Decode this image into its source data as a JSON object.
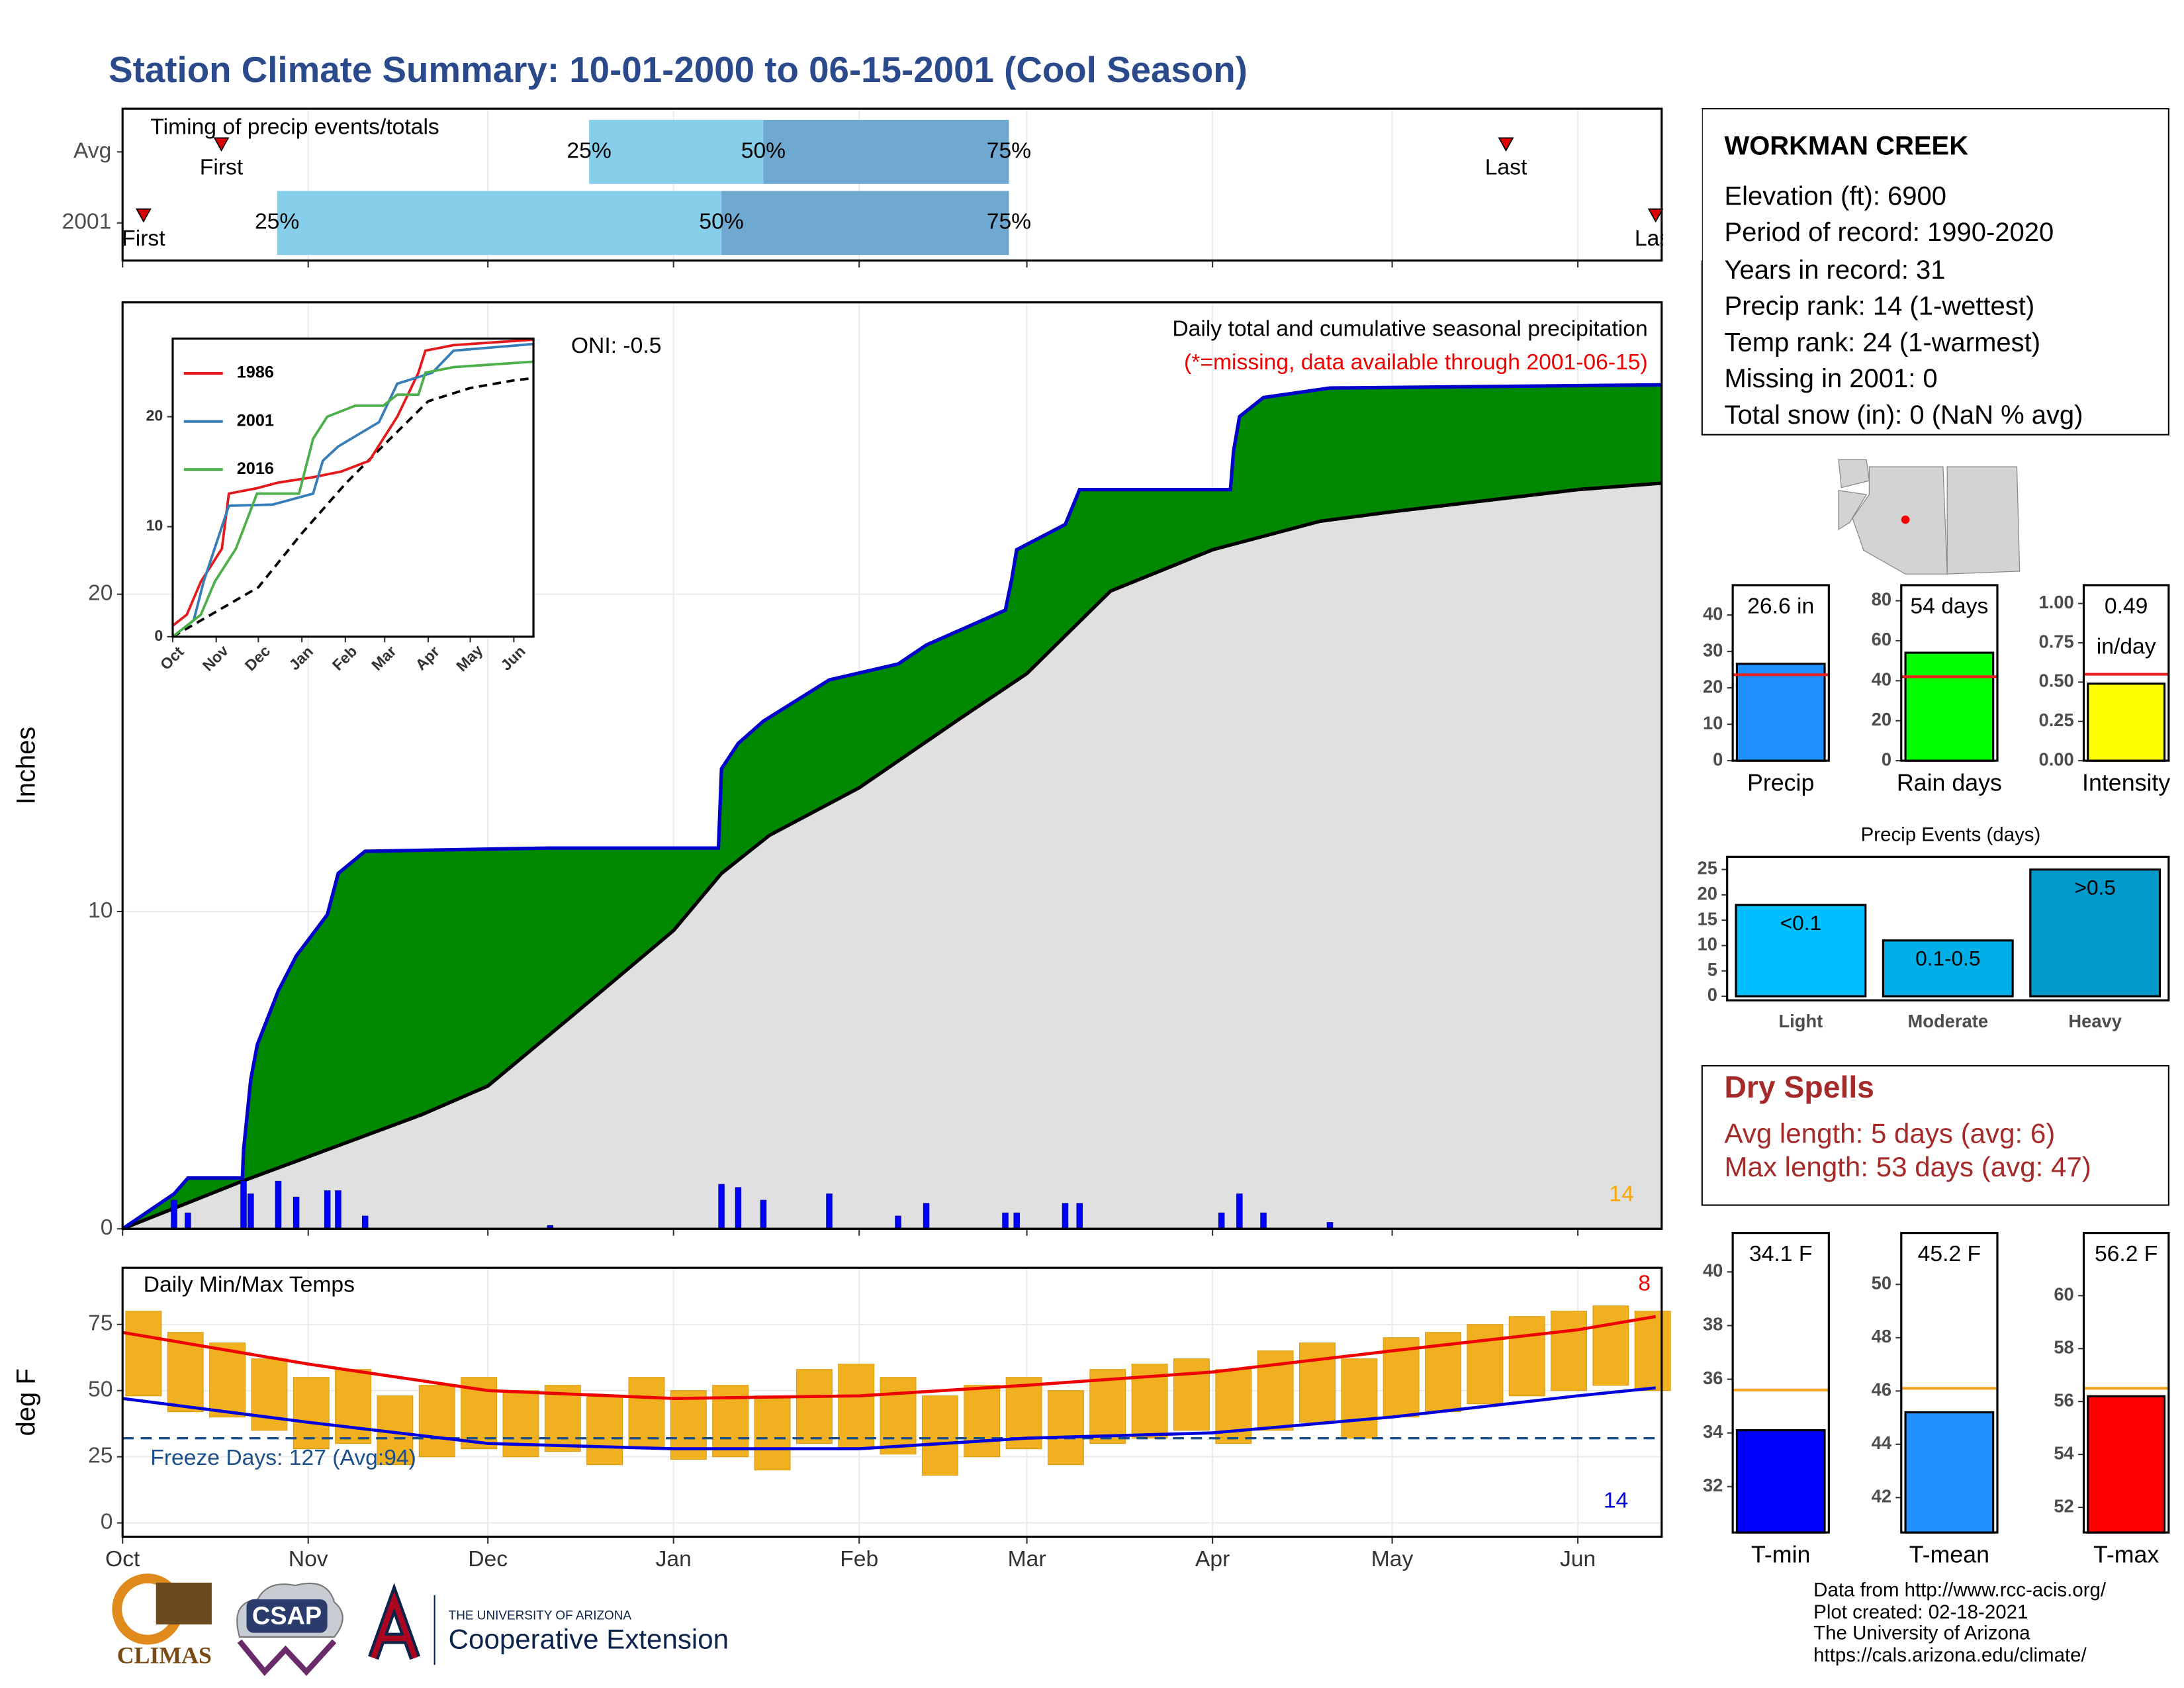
{
  "header": {
    "title": "Station Climate Summary: 10-01-2000 to 06-15-2001 (Cool Season)"
  },
  "station": {
    "name": "WORKMAN CREEK",
    "lines": [
      "Elevation (ft): 6900",
      "Period of record: 1990-2020",
      "Years in record: 31",
      "Precip rank: 14 (1-wettest)",
      "Temp rank: 24 (1-warmest)",
      "Missing in 2001: 0",
      "Total snow (in): 0 (NaN % avg)"
    ]
  },
  "dry_spells": {
    "title": "Dry Spells",
    "lines": [
      "Avg length: 5 days (avg: 6)",
      "Max length: 53 days (avg: 47)"
    ]
  },
  "footer": {
    "lines": [
      "Data from http://www.rcc-acis.org/",
      "Plot created: 02-18-2021",
      "The University of Arizona",
      "https://cals.arizona.edu/climate/"
    ]
  },
  "logos": {
    "climas": "CLIMAS",
    "csap": "CSAP",
    "university": "THE UNIVERSITY OF ARIZONA",
    "extension": "Cooperative Extension"
  },
  "chart_data": [
    {
      "type": "timing",
      "title": "Timing of precip events/totals",
      "categories": [
        "Avg",
        "2001"
      ],
      "first": [
        16.5,
        3.5
      ],
      "q25": [
        77.9,
        25.8
      ],
      "q50": [
        107,
        100
      ],
      "q75": [
        148,
        148
      ],
      "last": [
        231,
        256
      ],
      "labels": {
        "first": "First",
        "last": "Last",
        "q25": "25%",
        "q50": "50%",
        "q75": "75%"
      },
      "colors": {
        "early": "#87ceeb",
        "late": "#6fa8d0",
        "marker": "#dd0000"
      },
      "xlim": [
        0,
        257
      ]
    },
    {
      "type": "cumulative",
      "title": "Daily total and cumulative seasonal precipitation",
      "subtitle": "(*=missing, data available through 2001-06-15)",
      "annotation": "ONI: -0.5",
      "note": "14",
      "y_label": "Inches",
      "xlim": [
        0,
        257
      ],
      "ylim": [
        0,
        29.2
      ],
      "yticks": [
        0,
        10,
        20
      ],
      "grid": true,
      "observed": {
        "color": "#0000cc",
        "fill": "#008800",
        "x": [
          0,
          8.6,
          10.9,
          20,
          20.2,
          21.4,
          22.5,
          26,
          29,
          34.2,
          36,
          40.5,
          71.4,
          99.5,
          100,
          102.8,
          107,
          118,
          129.5,
          134.2,
          147.4,
          148.5,
          149.3,
          157.4,
          159.8,
          185,
          185.5,
          186.5,
          190.5,
          201.6,
          257
        ],
        "values": [
          0,
          1.1,
          1.6,
          1.6,
          2.5,
          4.7,
          5.8,
          7.5,
          8.6,
          9.9,
          11.2,
          11.9,
          12.0,
          12.0,
          14.5,
          15.3,
          16.0,
          17.3,
          17.8,
          18.4,
          19.5,
          20.5,
          21.4,
          22.2,
          23.3,
          23.3,
          24.5,
          25.6,
          26.2,
          26.5,
          26.6
        ]
      },
      "average": {
        "color": "#000000",
        "fill": "#e0e0e0",
        "x": [
          0,
          20,
          30,
          50,
          61,
          75,
          92,
          100,
          108,
          123,
          140,
          151,
          165,
          182,
          200,
          212,
          243,
          257
        ],
        "values": [
          0,
          1.5,
          2.2,
          3.6,
          4.5,
          6.7,
          9.4,
          11.2,
          12.4,
          13.9,
          16.1,
          17.5,
          20.1,
          21.4,
          22.3,
          22.6,
          23.3,
          23.5
        ]
      },
      "daily": {
        "color": "#0000ff",
        "x": [
          8.6,
          10.9,
          20.2,
          21.4,
          26,
          29,
          34.2,
          36,
          40.5,
          71.4,
          100,
          102.8,
          107,
          118,
          129.5,
          134.2,
          147.4,
          149.3,
          157.4,
          159.8,
          183.5,
          186.5,
          190.5,
          201.6
        ],
        "values": [
          0.9,
          0.5,
          1.5,
          1.1,
          1.5,
          1.0,
          1.2,
          1.2,
          0.4,
          0.1,
          1.4,
          1.3,
          0.9,
          1.1,
          0.4,
          0.8,
          0.5,
          0.5,
          0.8,
          0.8,
          0.5,
          1.1,
          0.5,
          0.2
        ]
      }
    },
    {
      "type": "line",
      "xlim": [
        0,
        257
      ],
      "ylim": [
        0,
        27.1
      ],
      "yticks": [
        0,
        10,
        20
      ],
      "xticks": [
        {
          "value": 0,
          "label": "Oct"
        },
        {
          "value": 31,
          "label": "Nov"
        },
        {
          "value": 61,
          "label": "Dec"
        },
        {
          "value": 92,
          "label": "Jan"
        },
        {
          "value": 123,
          "label": "Feb"
        },
        {
          "value": 151,
          "label": "Mar"
        },
        {
          "value": 182,
          "label": "Apr"
        },
        {
          "value": 212,
          "label": "May"
        },
        {
          "value": 243,
          "label": "Jun"
        }
      ],
      "series": [
        {
          "name": "1986",
          "color": "#e41a1c",
          "x": [
            0,
            10,
            20,
            35,
            40,
            60,
            75,
            100,
            120,
            140,
            160,
            175,
            180,
            200,
            257
          ],
          "values": [
            1,
            2,
            5,
            8,
            13,
            13.5,
            14,
            14.5,
            15,
            16,
            20,
            24,
            26,
            26.5,
            27
          ]
        },
        {
          "name": "2001",
          "color": "#377eb8",
          "x": [
            0,
            15,
            22,
            40,
            71,
            100,
            107,
            118,
            147,
            160,
            185,
            200,
            257
          ],
          "values": [
            0,
            1.5,
            5,
            11.9,
            12,
            13,
            16,
            17.3,
            19.5,
            23,
            24,
            26,
            26.6
          ]
        },
        {
          "name": "2016",
          "color": "#4daf4a",
          "x": [
            0,
            20,
            30,
            45,
            60,
            90,
            100,
            110,
            130,
            150,
            160,
            175,
            180,
            200,
            257
          ],
          "values": [
            0,
            2,
            5,
            8,
            13,
            13,
            18,
            20,
            21,
            21,
            22,
            22,
            24,
            24.5,
            25
          ]
        }
      ],
      "average": {
        "color": "#000000",
        "x": [
          0,
          30,
          61,
          92,
          123,
          151,
          182,
          212,
          243,
          257
        ],
        "values": [
          0,
          2.2,
          4.5,
          9.4,
          13.9,
          17.5,
          21.4,
          22.6,
          23.3,
          23.5
        ]
      }
    },
    {
      "type": "temps",
      "title": "Daily Min/Max Temps",
      "annotation": "Freeze Days: 127 (Avg:94)",
      "note_high": "8",
      "note_low": "14",
      "y_label": "deg F",
      "xlim": [
        0,
        257
      ],
      "ylim": [
        -5.2,
        96.4
      ],
      "yticks": [
        0,
        25,
        50,
        75
      ],
      "freeze": 32,
      "grid": true,
      "xticks": [
        {
          "value": 0,
          "label": "Oct"
        },
        {
          "value": 31,
          "label": "Nov"
        },
        {
          "value": 61,
          "label": "Dec"
        },
        {
          "value": 92,
          "label": "Jan"
        },
        {
          "value": 123,
          "label": "Feb"
        },
        {
          "value": 151,
          "label": "Mar"
        },
        {
          "value": 182,
          "label": "Apr"
        },
        {
          "value": 212,
          "label": "May"
        },
        {
          "value": 243,
          "label": "Jun"
        }
      ],
      "x": [
        3.5,
        10.5,
        17.5,
        24.5,
        31.5,
        38.5,
        45.5,
        52.5,
        59.5,
        66.5,
        73.5,
        80.5,
        87.5,
        94.5,
        101.5,
        108.5,
        115.5,
        122.5,
        129.5,
        136.5,
        143.5,
        150.5,
        157.5,
        164.5,
        171.5,
        178.5,
        185.5,
        192.5,
        199.5,
        206.5,
        213.5,
        220.5,
        227.5,
        234.5,
        241.5,
        248.5,
        255.5
      ],
      "max": [
        80,
        72,
        68,
        62,
        55,
        58,
        48,
        52,
        55,
        50,
        52,
        48,
        55,
        50,
        52,
        48,
        58,
        60,
        55,
        48,
        52,
        55,
        50,
        58,
        60,
        62,
        58,
        65,
        68,
        62,
        70,
        72,
        75,
        78,
        80,
        82,
        80
      ],
      "min": [
        48,
        42,
        40,
        35,
        28,
        30,
        22,
        25,
        28,
        25,
        27,
        22,
        28,
        24,
        25,
        20,
        30,
        28,
        26,
        18,
        25,
        28,
        22,
        30,
        32,
        35,
        30,
        35,
        38,
        32,
        40,
        42,
        45,
        48,
        50,
        52,
        50
      ],
      "avg_x": [
        0,
        31,
        61,
        92,
        123,
        151,
        182,
        212,
        243,
        256
      ],
      "avg_max": [
        72,
        60,
        50,
        47,
        48,
        52,
        57,
        65,
        73,
        78
      ],
      "avg_min": [
        47,
        38,
        30,
        28,
        28,
        32,
        34,
        40,
        48,
        51
      ],
      "colors": {
        "bar": "#f0b020",
        "max": "#ee0000",
        "min": "#0000dd",
        "freeze": "#1a4f8a"
      }
    },
    {
      "type": "summary",
      "label": "Precip",
      "value": 26.6,
      "value_label": "26.6 in",
      "average": 23.6,
      "color": "#1e90ff",
      "avg_color": "#e82020",
      "ylim": [
        0,
        48.2
      ],
      "yticks": [
        0,
        10,
        20,
        30,
        40
      ]
    },
    {
      "type": "summary",
      "label": "Rain days",
      "value": 54,
      "value_label": "54 days",
      "average": 42,
      "color": "#00ff00",
      "avg_color": "#e82020",
      "ylim": [
        0,
        87.8
      ],
      "yticks": [
        0,
        20,
        40,
        60,
        80
      ]
    },
    {
      "type": "summary",
      "label": "Intensity",
      "value": 0.49,
      "value_label": "0.49",
      "unit": "in/day",
      "average": 0.55,
      "color": "#ffff00",
      "avg_color": "#e82020",
      "ylim": [
        0,
        1.117
      ],
      "yticks": [
        {
          "value": 0,
          "label": "0.00"
        },
        {
          "value": 0.25,
          "label": "0.25"
        },
        {
          "value": 0.5,
          "label": "0.50"
        },
        {
          "value": 0.75,
          "label": "0.75"
        },
        {
          "value": 1,
          "label": "1.00"
        }
      ]
    },
    {
      "type": "bar",
      "title": "Precip Events (days)",
      "categories": [
        "Light",
        "Moderate",
        "Heavy"
      ],
      "values": [
        18,
        11,
        25
      ],
      "value_labels": [
        "<0.1",
        "0.1-0.5",
        ">0.5"
      ],
      "colors": [
        "#00bfff",
        "#00aee8",
        "#0099cc"
      ],
      "ylim": [
        -0.8,
        27.5
      ],
      "yticks": [
        0,
        5,
        10,
        15,
        20,
        25
      ]
    },
    {
      "type": "summary",
      "label": "T-min",
      "value": 34.1,
      "value_label": "34.1 F",
      "average": 35.6,
      "color": "#0000ff",
      "avg_color": "#f5a623",
      "ylim": [
        30.29,
        41.45
      ],
      "yticks": [
        32,
        34,
        36,
        38,
        40
      ]
    },
    {
      "type": "summary",
      "label": "T-mean",
      "value": 45.2,
      "value_label": "45.2 F",
      "average": 46.1,
      "color": "#1e90ff",
      "avg_color": "#f5a623",
      "ylim": [
        40.69,
        51.93
      ],
      "yticks": [
        42,
        44,
        46,
        48,
        50
      ]
    },
    {
      "type": "summary",
      "label": "T-max",
      "value": 56.2,
      "value_label": "56.2 F",
      "average": 56.5,
      "color": "#ff0000",
      "avg_color": "#f5a623",
      "ylim": [
        51.05,
        62.37
      ],
      "yticks": [
        52,
        54,
        56,
        58,
        60
      ]
    }
  ]
}
